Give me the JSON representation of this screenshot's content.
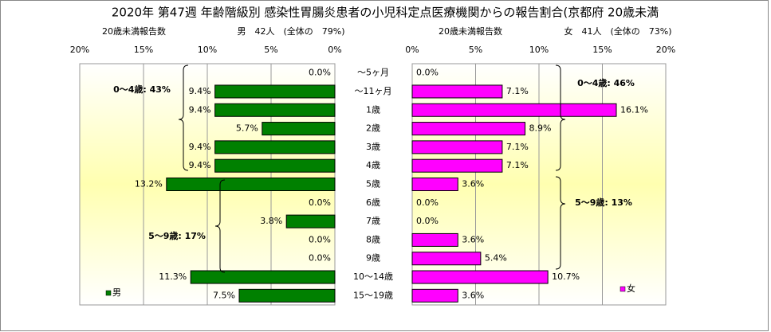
{
  "chart_data": {
    "type": "butterfly-bar",
    "title": "2020年 第47週 年齢階級別 感染性胃腸炎患者の小児科定点医療機関からの報告割合(京都府 20歳未満",
    "subtitles": [
      "20歳未満報告数",
      "男　42人　(全体の　79%)",
      "20歳未満報告数",
      "女　41人　(全体の　73%)"
    ],
    "categories": [
      "～5ヶ月",
      "～11ヶ月",
      "1歳",
      "2歳",
      "3歳",
      "4歳",
      "5歳",
      "6歳",
      "7歳",
      "8歳",
      "9歳",
      "10～14歳",
      "15～19歳"
    ],
    "series": [
      {
        "name": "男",
        "color": "#008000",
        "values": [
          0.0,
          9.4,
          9.4,
          5.7,
          9.4,
          9.4,
          13.2,
          0.0,
          3.8,
          0.0,
          0.0,
          11.3,
          7.5
        ],
        "value_labels": [
          "0.0%",
          "9.4%",
          "9.4%",
          "5.7%",
          "9.4%",
          "9.4%",
          "13.2%",
          "0.0%",
          "3.8%",
          "0.0%",
          "0.0%",
          "11.3%",
          "7.5%"
        ]
      },
      {
        "name": "女",
        "color": "#ff00ff",
        "values": [
          0.0,
          7.1,
          16.1,
          8.9,
          7.1,
          7.1,
          3.6,
          0.0,
          0.0,
          3.6,
          5.4,
          10.7,
          3.6
        ],
        "value_labels": [
          "0.0%",
          "7.1%",
          "16.1%",
          "8.9%",
          "7.1%",
          "7.1%",
          "3.6%",
          "0.0%",
          "0.0%",
          "3.6%",
          "5.4%",
          "10.7%",
          "3.6%"
        ]
      }
    ],
    "annotations": [
      "0～4歳: 43%",
      "5～9歳: 17%",
      "0～4歳: 46%",
      "5～9歳: 13%"
    ],
    "xlim": [
      0,
      20
    ],
    "xticks": [
      {
        "value": 0,
        "label": "0%"
      },
      {
        "value": 5,
        "label": "5%"
      },
      {
        "value": 10,
        "label": "10%"
      },
      {
        "value": 15,
        "label": "15%"
      },
      {
        "value": 20,
        "label": "20%"
      }
    ],
    "grid": true
  }
}
